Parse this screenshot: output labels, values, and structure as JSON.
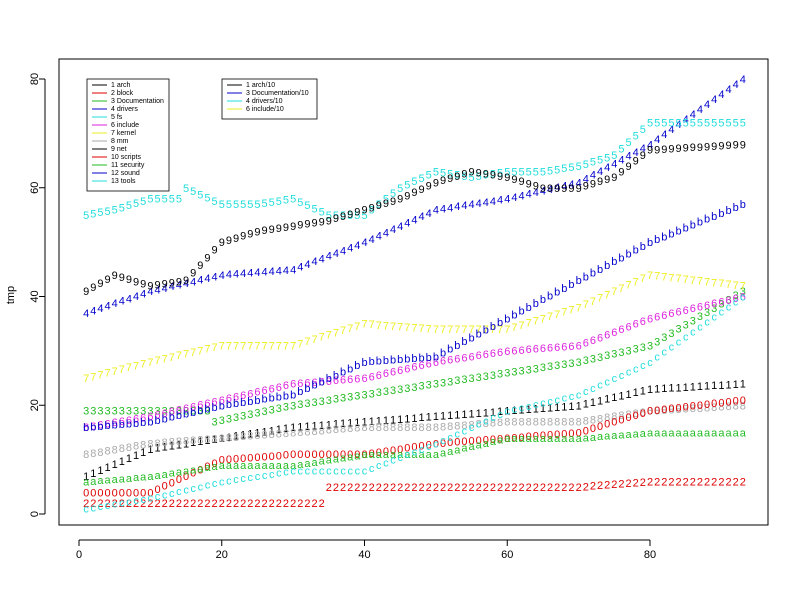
{
  "chart_data": {
    "type": "scatter",
    "ylabel": "tmp",
    "xlim": [
      0,
      94
    ],
    "ylim": [
      0,
      82
    ],
    "x_ticks": [
      0,
      20,
      40,
      60,
      80
    ],
    "y_ticks": [
      0,
      20,
      40,
      60,
      80
    ],
    "grid": false,
    "legend1": [
      {
        "label": "1 arch",
        "color": "#000000"
      },
      {
        "label": "2 block",
        "color": "#df0000"
      },
      {
        "label": "3 Documentation",
        "color": "#22bb22"
      },
      {
        "label": "4 drivers",
        "color": "#0000cc"
      },
      {
        "label": "5 fs",
        "color": "#22dddd"
      },
      {
        "label": "6 include",
        "color": "#dd22dd"
      },
      {
        "label": "7 kernel",
        "color": "#eeee22"
      },
      {
        "label": "8 mm",
        "color": "#aaaaaa"
      },
      {
        "label": "9 net",
        "color": "#000000"
      },
      {
        "label": "10 scripts",
        "color": "#df0000"
      },
      {
        "label": "11 security",
        "color": "#22bb22"
      },
      {
        "label": "12 sound",
        "color": "#0000cc"
      },
      {
        "label": "13 tools",
        "color": "#22dddd"
      }
    ],
    "legend2": [
      {
        "label": "1 arch/10",
        "color": "#000000"
      },
      {
        "label": "3 Documentation/10",
        "color": "#0000cc"
      },
      {
        "label": "4 drivers/10",
        "color": "#22dddd"
      },
      {
        "label": "6 include/10",
        "color": "#eeee22"
      }
    ],
    "series": [
      {
        "symbol": "1",
        "color": "#000000",
        "values": [
          [
            1,
            7
          ],
          [
            10,
            12
          ],
          [
            20,
            14
          ],
          [
            30,
            16
          ],
          [
            40,
            17
          ],
          [
            50,
            18
          ],
          [
            60,
            19
          ],
          [
            70,
            20
          ],
          [
            80,
            23
          ],
          [
            93,
            24
          ]
        ]
      },
      {
        "symbol": "2",
        "color": "#df0000",
        "values": [
          [
            1,
            2
          ],
          [
            10,
            2
          ],
          [
            20,
            2
          ],
          [
            34,
            2
          ],
          [
            35,
            5
          ],
          [
            50,
            5
          ],
          [
            60,
            5
          ],
          [
            70,
            5
          ],
          [
            80,
            6
          ],
          [
            93,
            6
          ]
        ]
      },
      {
        "symbol": "3",
        "color": "#22bb22",
        "values": [
          [
            1,
            19
          ],
          [
            10,
            19
          ],
          [
            18,
            19
          ],
          [
            19,
            17
          ],
          [
            30,
            20
          ],
          [
            40,
            22
          ],
          [
            50,
            24
          ],
          [
            60,
            26
          ],
          [
            70,
            28
          ],
          [
            80,
            31
          ],
          [
            93,
            41
          ]
        ]
      },
      {
        "symbol": "4",
        "color": "#0000cc",
        "values": [
          [
            1,
            37
          ],
          [
            10,
            41
          ],
          [
            20,
            44
          ],
          [
            30,
            45
          ],
          [
            40,
            50
          ],
          [
            50,
            56
          ],
          [
            60,
            58
          ],
          [
            70,
            61
          ],
          [
            80,
            68
          ],
          [
            93,
            80
          ]
        ]
      },
      {
        "symbol": "5",
        "color": "#22dddd",
        "values": [
          [
            1,
            55
          ],
          [
            5,
            56
          ],
          [
            10,
            58
          ],
          [
            14,
            58
          ],
          [
            15,
            60
          ],
          [
            20,
            57
          ],
          [
            25,
            57
          ],
          [
            30,
            58
          ],
          [
            35,
            55
          ],
          [
            40,
            55
          ],
          [
            45,
            60
          ],
          [
            50,
            63
          ],
          [
            55,
            62
          ],
          [
            60,
            63
          ],
          [
            65,
            63
          ],
          [
            70,
            64
          ],
          [
            75,
            66
          ],
          [
            80,
            72
          ],
          [
            93,
            72
          ]
        ]
      },
      {
        "symbol": "6",
        "color": "#dd22dd",
        "values": [
          [
            1,
            16
          ],
          [
            10,
            18
          ],
          [
            20,
            21
          ],
          [
            30,
            24
          ],
          [
            40,
            25
          ],
          [
            50,
            28
          ],
          [
            60,
            30
          ],
          [
            70,
            31
          ],
          [
            80,
            36
          ],
          [
            93,
            40
          ]
        ]
      },
      {
        "symbol": "7",
        "color": "#eeee22",
        "values": [
          [
            1,
            25
          ],
          [
            10,
            28
          ],
          [
            20,
            31
          ],
          [
            30,
            31
          ],
          [
            40,
            35
          ],
          [
            50,
            34
          ],
          [
            60,
            34
          ],
          [
            70,
            38
          ],
          [
            80,
            44
          ],
          [
            93,
            42
          ]
        ]
      },
      {
        "symbol": "8",
        "color": "#aaaaaa",
        "values": [
          [
            1,
            11
          ],
          [
            10,
            13
          ],
          [
            20,
            14
          ],
          [
            30,
            15
          ],
          [
            40,
            16
          ],
          [
            50,
            16
          ],
          [
            60,
            17
          ],
          [
            70,
            17
          ],
          [
            80,
            19
          ],
          [
            93,
            20
          ]
        ]
      },
      {
        "symbol": "9",
        "color": "#000000",
        "values": [
          [
            1,
            41
          ],
          [
            5,
            44
          ],
          [
            10,
            42
          ],
          [
            15,
            43
          ],
          [
            20,
            50
          ],
          [
            25,
            52
          ],
          [
            30,
            53
          ],
          [
            35,
            54
          ],
          [
            40,
            56
          ],
          [
            45,
            58
          ],
          [
            50,
            61
          ],
          [
            55,
            63
          ],
          [
            60,
            62
          ],
          [
            65,
            60
          ],
          [
            70,
            60
          ],
          [
            75,
            62
          ],
          [
            80,
            67
          ],
          [
            93,
            68
          ]
        ]
      },
      {
        "symbol": "0",
        "color": "#df0000",
        "values": [
          [
            1,
            4
          ],
          [
            10,
            4
          ],
          [
            20,
            10
          ],
          [
            30,
            11
          ],
          [
            40,
            11
          ],
          [
            50,
            13
          ],
          [
            60,
            14
          ],
          [
            70,
            15
          ],
          [
            80,
            19
          ],
          [
            93,
            21
          ]
        ]
      },
      {
        "symbol": "a",
        "color": "#22bb22",
        "values": [
          [
            1,
            6
          ],
          [
            10,
            7
          ],
          [
            20,
            9
          ],
          [
            30,
            9
          ],
          [
            40,
            11
          ],
          [
            50,
            11
          ],
          [
            60,
            14
          ],
          [
            70,
            14
          ],
          [
            80,
            15
          ],
          [
            93,
            15
          ]
        ]
      },
      {
        "symbol": "b",
        "color": "#0000cc",
        "values": [
          [
            1,
            16
          ],
          [
            10,
            17
          ],
          [
            20,
            20
          ],
          [
            30,
            22
          ],
          [
            40,
            28
          ],
          [
            50,
            29
          ],
          [
            60,
            36
          ],
          [
            70,
            43
          ],
          [
            80,
            50
          ],
          [
            93,
            57
          ]
        ]
      },
      {
        "symbol": "c",
        "color": "#22dddd",
        "values": [
          [
            1,
            1
          ],
          [
            10,
            3
          ],
          [
            20,
            6
          ],
          [
            30,
            8
          ],
          [
            40,
            8
          ],
          [
            50,
            13
          ],
          [
            60,
            19
          ],
          [
            70,
            22
          ],
          [
            80,
            28
          ],
          [
            93,
            40
          ]
        ]
      }
    ]
  }
}
